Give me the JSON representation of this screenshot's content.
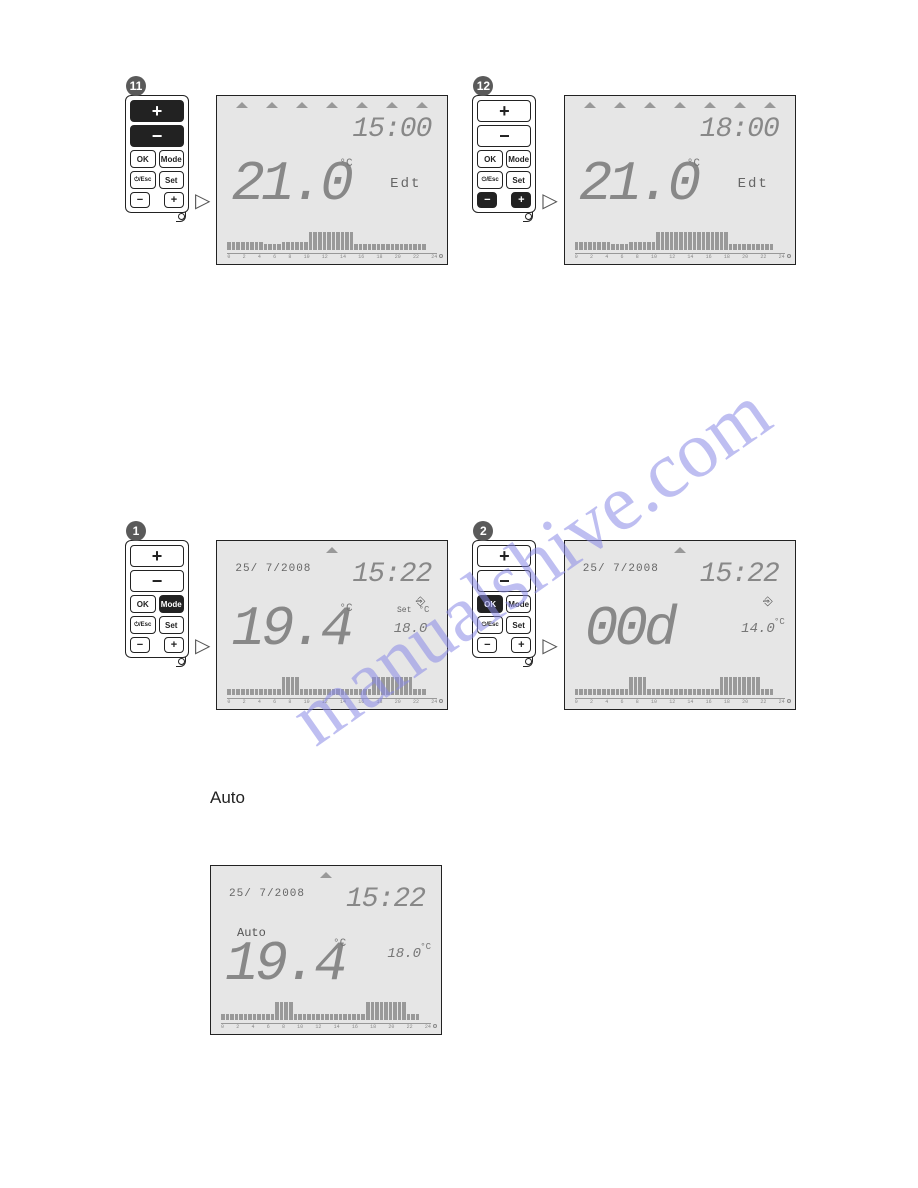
{
  "watermark": "manualshive.com",
  "auto_label": "Auto",
  "panels": {
    "p11": {
      "badge": "11",
      "time": "15:00",
      "temp": "21.0",
      "temp_unit": "°C",
      "text": "Edt",
      "triangles": [
        true,
        true,
        true,
        true,
        true,
        true,
        true
      ],
      "active_buttons": [
        "plus_top",
        "minus_top"
      ],
      "bars": [
        8,
        8,
        8,
        8,
        8,
        8,
        8,
        8,
        6,
        6,
        6,
        6,
        8,
        8,
        8,
        8,
        8,
        8,
        18,
        18,
        18,
        18,
        18,
        18,
        18,
        18,
        18,
        18,
        6,
        6,
        6,
        6,
        6,
        6,
        6,
        6,
        6,
        6,
        6,
        6,
        6,
        6,
        6,
        6
      ]
    },
    "p12": {
      "badge": "12",
      "time": "18:00",
      "temp": "21.0",
      "temp_unit": "°C",
      "text": "Edt",
      "triangles": [
        true,
        true,
        true,
        true,
        true,
        true,
        true
      ],
      "active_buttons": [
        "plus_bot",
        "minus_bot"
      ],
      "bars": [
        8,
        8,
        8,
        8,
        8,
        8,
        8,
        8,
        6,
        6,
        6,
        6,
        8,
        8,
        8,
        8,
        8,
        8,
        18,
        18,
        18,
        18,
        18,
        18,
        18,
        18,
        18,
        18,
        18,
        18,
        18,
        18,
        18,
        18,
        6,
        6,
        6,
        6,
        6,
        6,
        6,
        6,
        6,
        6
      ]
    },
    "p1": {
      "badge": "1",
      "date": "25/ 7/2008",
      "time": "15:22",
      "temp": "19.4",
      "temp_unit": "°C",
      "set_label": "Set",
      "set_temp": "18.0",
      "set_unit": "°C",
      "icon": "⎆",
      "triangles": [
        false,
        false,
        false,
        true,
        false,
        false,
        false
      ],
      "active_buttons": [
        "mode"
      ],
      "bars": [
        6,
        6,
        6,
        6,
        6,
        6,
        6,
        6,
        6,
        6,
        6,
        6,
        18,
        18,
        18,
        18,
        6,
        6,
        6,
        6,
        6,
        6,
        6,
        6,
        6,
        6,
        6,
        6,
        6,
        6,
        6,
        6,
        18,
        18,
        18,
        18,
        18,
        18,
        18,
        18,
        18,
        6,
        6,
        6
      ]
    },
    "p2": {
      "badge": "2",
      "date": "25/ 7/2008",
      "time": "15:22",
      "temp": "00d",
      "set_temp": "14.0",
      "set_unit": "°C",
      "icon": "⎆",
      "triangles": [
        false,
        false,
        false,
        true,
        false,
        false,
        false
      ],
      "active_buttons": [
        "ok"
      ],
      "bars": [
        6,
        6,
        6,
        6,
        6,
        6,
        6,
        6,
        6,
        6,
        6,
        6,
        18,
        18,
        18,
        18,
        6,
        6,
        6,
        6,
        6,
        6,
        6,
        6,
        6,
        6,
        6,
        6,
        6,
        6,
        6,
        6,
        18,
        18,
        18,
        18,
        18,
        18,
        18,
        18,
        18,
        6,
        6,
        6
      ]
    },
    "p3": {
      "date": "25/ 7/2008",
      "time": "15:22",
      "auto": "Auto",
      "temp": "19.4",
      "temp_unit": "°C",
      "set_temp": "18.0",
      "set_unit": "°C",
      "triangles": [
        false,
        false,
        false,
        true,
        false,
        false,
        false
      ],
      "bars": [
        6,
        6,
        6,
        6,
        6,
        6,
        6,
        6,
        6,
        6,
        6,
        6,
        18,
        18,
        18,
        18,
        6,
        6,
        6,
        6,
        6,
        6,
        6,
        6,
        6,
        6,
        6,
        6,
        6,
        6,
        6,
        6,
        18,
        18,
        18,
        18,
        18,
        18,
        18,
        18,
        18,
        6,
        6,
        6
      ]
    }
  },
  "buttons": {
    "plus": "+",
    "minus": "−",
    "ok": "OK",
    "mode": "Mode",
    "esc": "⏻/Esc",
    "set": "Set"
  },
  "colors": {
    "lcd_bg": "#e6e6e6",
    "border": "#222222",
    "seg": "#888888",
    "btn_active": "#222222"
  }
}
